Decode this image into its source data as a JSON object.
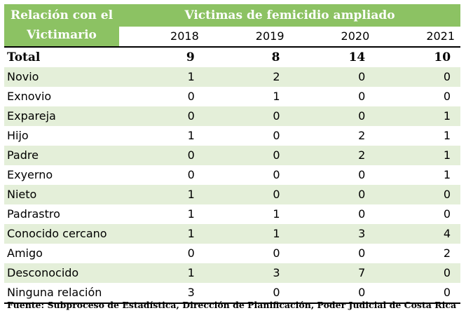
{
  "table": {
    "header_relation": "Relación con el Victimario",
    "header_title": "Victimas de femicidio ampliado",
    "years": [
      "2018",
      "2019",
      "2020",
      "2021"
    ],
    "total": {
      "label": "Total",
      "values": [
        "9",
        "8",
        "14",
        "10"
      ]
    },
    "rows": [
      {
        "label": "Novio",
        "values": [
          "1",
          "2",
          "0",
          "0"
        ]
      },
      {
        "label": "Exnovio",
        "values": [
          "0",
          "1",
          "0",
          "0"
        ]
      },
      {
        "label": "Expareja",
        "values": [
          "0",
          "0",
          "0",
          "1"
        ]
      },
      {
        "label": "Hijo",
        "values": [
          "1",
          "0",
          "2",
          "1"
        ]
      },
      {
        "label": "Padre",
        "values": [
          "0",
          "0",
          "2",
          "1"
        ]
      },
      {
        "label": "Exyerno",
        "values": [
          "0",
          "0",
          "0",
          "1"
        ]
      },
      {
        "label": "Nieto",
        "values": [
          "1",
          "0",
          "0",
          "0"
        ]
      },
      {
        "label": "Padrastro",
        "values": [
          "1",
          "1",
          "0",
          "0"
        ]
      },
      {
        "label": "Conocido cercano",
        "values": [
          "1",
          "1",
          "3",
          "4"
        ]
      },
      {
        "label": "Amigo",
        "values": [
          "0",
          "0",
          "0",
          "2"
        ]
      },
      {
        "label": "Desconocido",
        "values": [
          "1",
          "3",
          "7",
          "0"
        ]
      },
      {
        "label": "Ninguna relación",
        "values": [
          "3",
          "0",
          "0",
          "0"
        ]
      }
    ]
  },
  "source": "Fuente: Subproceso de Estadística, Dirección de Planificación, Poder Judicial de Costa Rica",
  "colors": {
    "header_green": "#8cc263",
    "row_shade": "#e4efd9"
  }
}
